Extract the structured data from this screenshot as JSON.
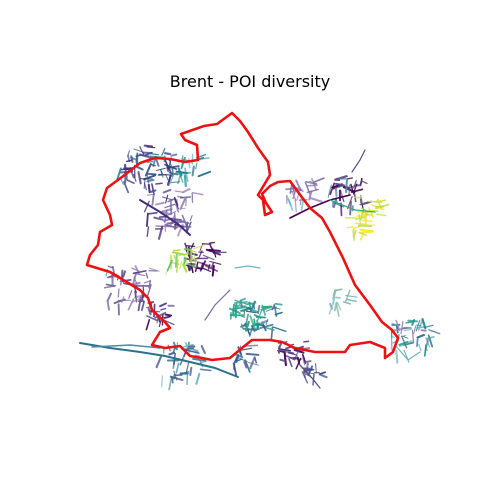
{
  "title": "Brent - POI diversity",
  "colors": {
    "boundary": "#ee1111",
    "background": "#ffffff",
    "palette": [
      "#440154",
      "#472d7b",
      "#3b528b",
      "#2c728e",
      "#21918c",
      "#28ae80",
      "#5ec962",
      "#addc30",
      "#fde725",
      "#9c7fb8",
      "#7a6aa6",
      "#5c4c86",
      "#6fb4bf",
      "#4a8c9e",
      "#8ab8a8",
      "#c8e063"
    ]
  },
  "map": {
    "colormap": "viridis",
    "legend": "none",
    "axes": "off"
  }
}
